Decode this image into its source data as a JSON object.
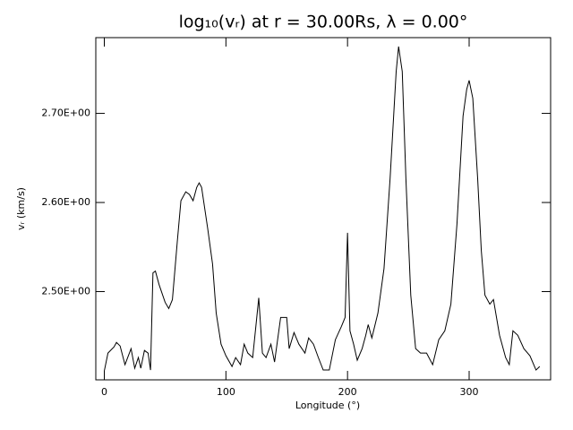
{
  "chart_data": {
    "type": "line",
    "title": "log₁₀(vᵣ) at r = 30.00Rs, λ = 0.00°",
    "x_label": "Longitude (°)",
    "y_label": "vᵣ (km/s)",
    "color": "#000000",
    "xlim": [
      -7,
      367
    ],
    "ylim": [
      2.401,
      2.785
    ],
    "xticks": [
      0,
      100,
      200,
      300
    ],
    "yticks": [
      {
        "value": 2.5,
        "label": "2.50E+00"
      },
      {
        "value": 2.6,
        "label": "2.60E+00"
      },
      {
        "value": 2.7,
        "label": "2.70E+00"
      }
    ],
    "x": [
      0,
      3,
      8,
      10,
      13,
      17,
      22,
      25,
      28,
      30,
      33,
      36,
      38,
      40,
      42,
      45,
      50,
      53,
      56,
      60,
      63,
      67,
      70,
      73,
      76,
      78,
      80,
      85,
      89,
      92,
      96,
      100,
      105,
      108,
      112,
      115,
      118,
      122,
      125,
      127,
      130,
      133,
      137,
      140,
      145,
      150,
      152,
      156,
      160,
      165,
      168,
      172,
      176,
      180,
      185,
      190,
      195,
      198,
      200,
      202,
      205,
      208,
      212,
      215,
      217,
      220,
      225,
      230,
      235,
      240,
      242,
      245,
      248,
      252,
      256,
      260,
      265,
      270,
      275,
      280,
      285,
      290,
      295,
      298,
      300,
      303,
      307,
      310,
      313,
      317,
      320,
      325,
      330,
      333,
      336,
      340,
      345,
      350,
      355,
      358
    ],
    "values": [
      2.411,
      2.431,
      2.438,
      2.443,
      2.439,
      2.418,
      2.436,
      2.414,
      2.426,
      2.414,
      2.434,
      2.431,
      2.412,
      2.521,
      2.523,
      2.508,
      2.488,
      2.481,
      2.491,
      2.556,
      2.602,
      2.612,
      2.609,
      2.602,
      2.617,
      2.622,
      2.617,
      2.571,
      2.531,
      2.476,
      2.441,
      2.428,
      2.416,
      2.426,
      2.418,
      2.441,
      2.431,
      2.426,
      2.466,
      2.493,
      2.431,
      2.426,
      2.441,
      2.421,
      2.471,
      2.471,
      2.436,
      2.454,
      2.441,
      2.431,
      2.448,
      2.441,
      2.426,
      2.412,
      2.412,
      2.446,
      2.461,
      2.471,
      2.566,
      2.456,
      2.441,
      2.423,
      2.436,
      2.451,
      2.463,
      2.448,
      2.476,
      2.526,
      2.627,
      2.747,
      2.775,
      2.747,
      2.627,
      2.496,
      2.436,
      2.431,
      2.431,
      2.418,
      2.446,
      2.456,
      2.486,
      2.576,
      2.697,
      2.727,
      2.737,
      2.717,
      2.627,
      2.546,
      2.496,
      2.486,
      2.491,
      2.451,
      2.426,
      2.418,
      2.456,
      2.451,
      2.436,
      2.428,
      2.412,
      2.416
    ]
  }
}
